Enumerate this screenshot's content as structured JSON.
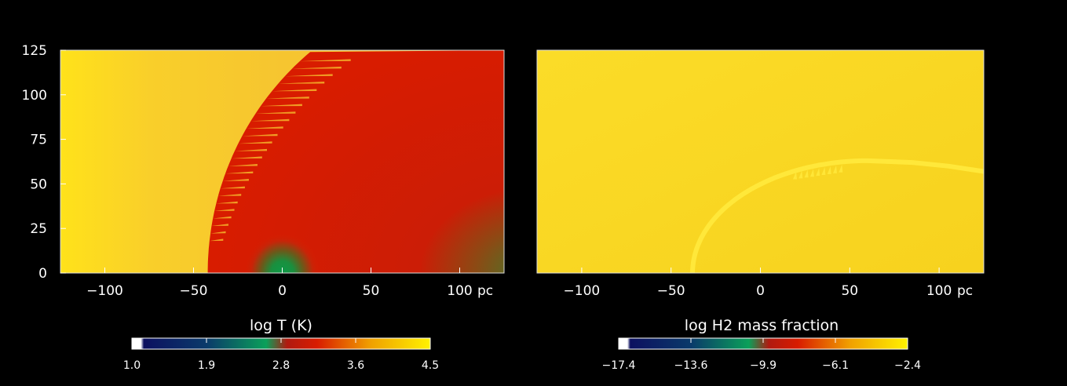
{
  "chart_data": [
    {
      "type": "heatmap",
      "title": "",
      "colorbar_label": "log T (K)",
      "colorbar_ticks": [
        "1.0",
        "1.9",
        "2.8",
        "3.6",
        "4.5"
      ],
      "colorbar_range": [
        1.0,
        4.5
      ],
      "x_unit": "pc",
      "x_ticks": [
        "−100",
        "−50",
        "0",
        "50",
        "100"
      ],
      "x_tick_values": [
        -100,
        -50,
        0,
        50,
        100
      ],
      "y_ticks": [
        "0",
        "25",
        "50",
        "75",
        "100",
        "125"
      ],
      "y_tick_values": [
        0,
        25,
        50,
        75,
        100,
        125
      ],
      "xlim": [
        -125,
        125
      ],
      "ylim": [
        0,
        125
      ],
      "regions": {
        "background_value": 4.3,
        "front_x_at_y0": -42,
        "front_center_x": 120,
        "front_center_y": 0,
        "front_radius": 162,
        "inner_value": 3.55,
        "core_x": 0,
        "core_y": 0,
        "core_radius": 9,
        "core_value": 2.5
      },
      "colors": [
        "#ffffff",
        "#0c1060",
        "#0aa05a",
        "#d81c00",
        "#f0a000",
        "#fff200"
      ]
    },
    {
      "type": "heatmap",
      "title": "",
      "colorbar_label": "log H2 mass fraction",
      "colorbar_ticks": [
        "−17.4",
        "−13.6",
        "−9.9",
        "−6.1",
        "−2.4"
      ],
      "colorbar_range": [
        -17.4,
        -2.4
      ],
      "x_unit": "pc",
      "x_ticks": [
        "−100",
        "−50",
        "0",
        "50",
        "100"
      ],
      "x_tick_values": [
        -100,
        -50,
        0,
        50,
        100
      ],
      "y_ticks": [],
      "xlim": [
        -125,
        125
      ],
      "ylim": [
        0,
        125
      ],
      "regions": {
        "background_value": -2.6,
        "shell_x_at_y0": -38,
        "shell_top_y": 63,
        "inner_value": -3.3
      },
      "colors": [
        "#ffffff",
        "#0c1060",
        "#0aa05a",
        "#d81c00",
        "#f0a000",
        "#fff200"
      ]
    }
  ]
}
